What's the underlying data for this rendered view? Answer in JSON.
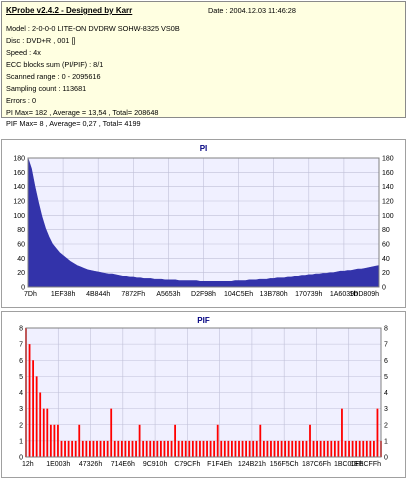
{
  "header": {
    "title": "KProbe v2.4.2 - Designed by Karr",
    "date": "Date : 2004.12.03 11:46:28",
    "lines": [
      "Model : 2-0-0-0 LITE-ON DVDRW SOHW-8325  VS0B",
      "Disc : DVD+R , 001 []",
      "Speed : 4x",
      "ECC blocks sum (PI/PIF) : 8/1",
      "Scanned range : 0 - 2095616",
      "Sampling count : 113681",
      "Errors : 0",
      "PI Max= 182 , Average = 13,54 , Total= 208648",
      "PIF Max= 8 , Average= 0,27 , Total= 4199"
    ]
  },
  "chart_data": [
    {
      "type": "area",
      "title": "PI",
      "ylim": [
        0,
        180
      ],
      "y_ticks": [
        0,
        20,
        40,
        60,
        80,
        100,
        120,
        140,
        160,
        180
      ],
      "x_tick_labels": [
        "7Dh",
        "1EF38h",
        "4B844h",
        "7872Fh",
        "A5653h",
        "D2F98h",
        "104C5Eh",
        "13B780h",
        "170739h",
        "1A6039h",
        "1DD809h"
      ],
      "grid": true,
      "color": "#3333aa",
      "series": [
        {
          "x": [
            0,
            1,
            2,
            3,
            4,
            5,
            6,
            7,
            8,
            9,
            10,
            11,
            12,
            13,
            14,
            15,
            16,
            17,
            18,
            19,
            20,
            21,
            22,
            23,
            24,
            25,
            26,
            27,
            28,
            29,
            30,
            31,
            32,
            33,
            34,
            35,
            36,
            37,
            38,
            39,
            40,
            41,
            42,
            43,
            44,
            45,
            46,
            47,
            48,
            49,
            50,
            51,
            52,
            53,
            54,
            55,
            56,
            57,
            58,
            59,
            60,
            61,
            62,
            63,
            64,
            65,
            66,
            67,
            68,
            69,
            70,
            71,
            72,
            73,
            74,
            75,
            76,
            77,
            78,
            79,
            80,
            81,
            82,
            83,
            84,
            85,
            86,
            87,
            88,
            89,
            90,
            91,
            92,
            93,
            94,
            95,
            96,
            97,
            98,
            99,
            100
          ],
          "values": [
            180,
            165,
            140,
            118,
            98,
            82,
            70,
            60,
            54,
            48,
            44,
            40,
            36,
            33,
            30,
            28,
            26,
            24,
            23,
            22,
            21,
            20,
            19,
            18,
            18,
            17,
            16,
            15,
            15,
            14,
            14,
            13,
            13,
            12,
            12,
            12,
            11,
            11,
            11,
            10,
            10,
            10,
            10,
            9,
            9,
            9,
            9,
            9,
            9,
            8,
            8,
            8,
            8,
            8,
            8,
            8,
            8,
            8,
            8,
            9,
            9,
            9,
            9,
            10,
            10,
            10,
            11,
            11,
            11,
            12,
            12,
            13,
            13,
            13,
            14,
            14,
            15,
            15,
            16,
            16,
            17,
            17,
            18,
            18,
            19,
            19,
            20,
            20,
            21,
            22,
            22,
            23,
            23,
            24,
            25,
            25,
            26,
            27,
            28,
            29,
            30
          ]
        }
      ]
    },
    {
      "type": "bar",
      "title": "PIF",
      "ylim": [
        0,
        8
      ],
      "y_ticks": [
        0,
        1,
        2,
        3,
        4,
        5,
        6,
        7,
        8
      ],
      "x_tick_labels": [
        "12h",
        "1E003h",
        "47326h",
        "714E6h",
        "9C910h",
        "C79CFh",
        "F1F4Eh",
        "124B21h",
        "156F5Ch",
        "187C6Fh",
        "1BC00Fh",
        "1EECFFh"
      ],
      "grid": true,
      "color": "#ff0000",
      "series": [
        {
          "x": [
            0,
            1,
            2,
            3,
            4,
            5,
            6,
            7,
            8,
            9,
            10,
            11,
            12,
            13,
            14,
            15,
            16,
            17,
            18,
            19,
            20,
            21,
            22,
            23,
            24,
            25,
            26,
            27,
            28,
            29,
            30,
            31,
            32,
            33,
            34,
            35,
            36,
            37,
            38,
            39,
            40,
            41,
            42,
            43,
            44,
            45,
            46,
            47,
            48,
            49,
            50,
            51,
            52,
            53,
            54,
            55,
            56,
            57,
            58,
            59,
            60,
            61,
            62,
            63,
            64,
            65,
            66,
            67,
            68,
            69,
            70,
            71,
            72,
            73,
            74,
            75,
            76,
            77,
            78,
            79,
            80,
            81,
            82,
            83,
            84,
            85,
            86,
            87,
            88,
            89,
            90,
            91,
            92,
            93,
            94,
            95,
            96,
            97,
            98,
            99,
            100
          ],
          "values": [
            8,
            7,
            6,
            5,
            4,
            3,
            3,
            2,
            2,
            2,
            1,
            1,
            1,
            1,
            1,
            2,
            1,
            1,
            1,
            1,
            1,
            1,
            1,
            1,
            3,
            1,
            1,
            1,
            1,
            1,
            1,
            1,
            2,
            1,
            1,
            1,
            1,
            1,
            1,
            1,
            1,
            1,
            2,
            1,
            1,
            1,
            1,
            1,
            1,
            1,
            1,
            1,
            1,
            1,
            2,
            1,
            1,
            1,
            1,
            1,
            1,
            1,
            1,
            1,
            1,
            1,
            2,
            1,
            1,
            1,
            1,
            1,
            1,
            1,
            1,
            1,
            1,
            1,
            1,
            1,
            2,
            1,
            1,
            1,
            1,
            1,
            1,
            1,
            1,
            3,
            1,
            1,
            1,
            1,
            1,
            1,
            1,
            1,
            1,
            3,
            1
          ]
        }
      ]
    }
  ]
}
